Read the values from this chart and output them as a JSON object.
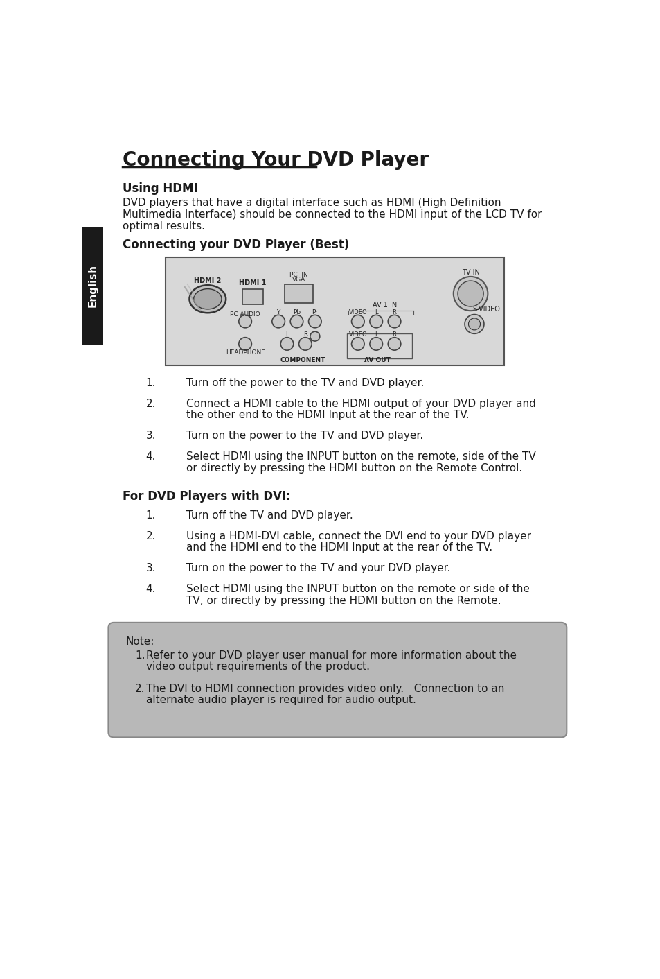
{
  "title": "Connecting Your DVD Player",
  "bg_color": "#ffffff",
  "sidebar_color": "#1a1a1a",
  "sidebar_text": "English",
  "section1_heading": "Using HDMI",
  "section1_body": "DVD players that have a digital interface such as HDMI (High Definition\nMultimedia Interface) should be connected to the HDMI input of the LCD TV for\noptimal results.",
  "section2_heading": "Connecting your DVD Player (Best)",
  "hdmi_steps": [
    "Turn off the power to the TV and DVD player.",
    "Connect a HDMI cable to the HDMI output of your DVD player and\nthe other end to the HDMI Input at the rear of the TV.",
    "Turn on the power to the TV and DVD player.",
    "Select HDMI using the INPUT button on the remote, side of the TV\nor directly by pressing the HDMI button on the Remote Control."
  ],
  "section3_heading": "For DVD Players with DVI:",
  "dvi_steps": [
    "Turn off the TV and DVD player.",
    "Using a HDMI-DVI cable, connect the DVI end to your DVD player\nand the HDMI end to the HDMI Input at the rear of the TV.",
    "Turn on the power to the TV and your DVD player.",
    "Select HDMI using the INPUT button on the remote or side of the\nTV, or directly by pressing the HDMI button on the Remote."
  ],
  "note_label": "Note:",
  "note_items": [
    "Refer to your DVD player user manual for more information about the\nvideo output requirements of the product.",
    "The DVI to HDMI connection provides video only.   Connection to an\nalternate audio player is required for audio output."
  ],
  "note_bg": "#b8b8b8",
  "panel_bg": "#d8d8d8",
  "panel_border": "#555555"
}
